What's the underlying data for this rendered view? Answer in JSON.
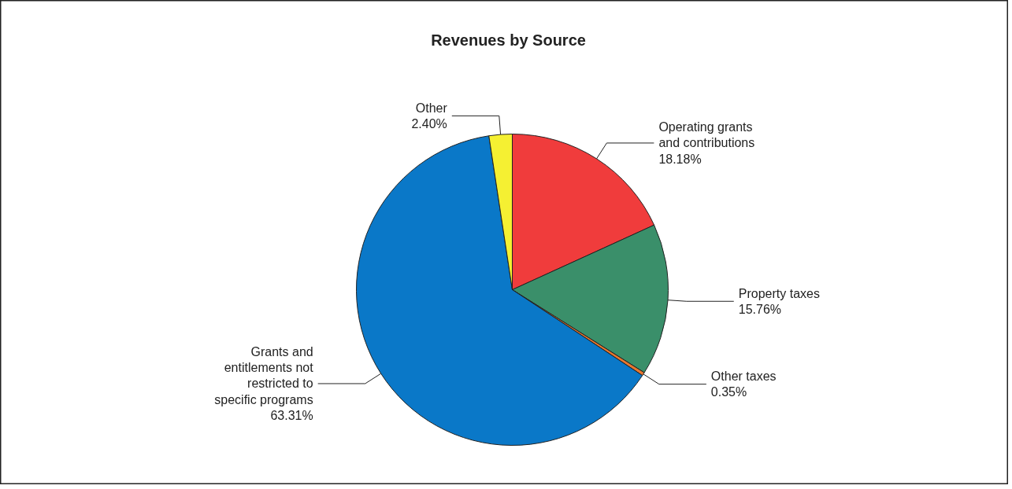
{
  "chart_data": {
    "type": "pie",
    "title": "Revenues by Source",
    "categories": [
      "Operating grants and contributions",
      "Property taxes",
      "Other taxes",
      "Grants and entitlements not restricted to specific programs",
      "Other"
    ],
    "values": [
      18.18,
      15.76,
      0.35,
      63.31,
      2.4
    ],
    "value_labels": [
      "18.18%",
      "15.76%",
      "0.35%",
      "63.31%",
      "2.40%"
    ],
    "colors": [
      "#f03c3c",
      "#3a8f6a",
      "#e8772e",
      "#0a78c8",
      "#f5f032"
    ]
  }
}
